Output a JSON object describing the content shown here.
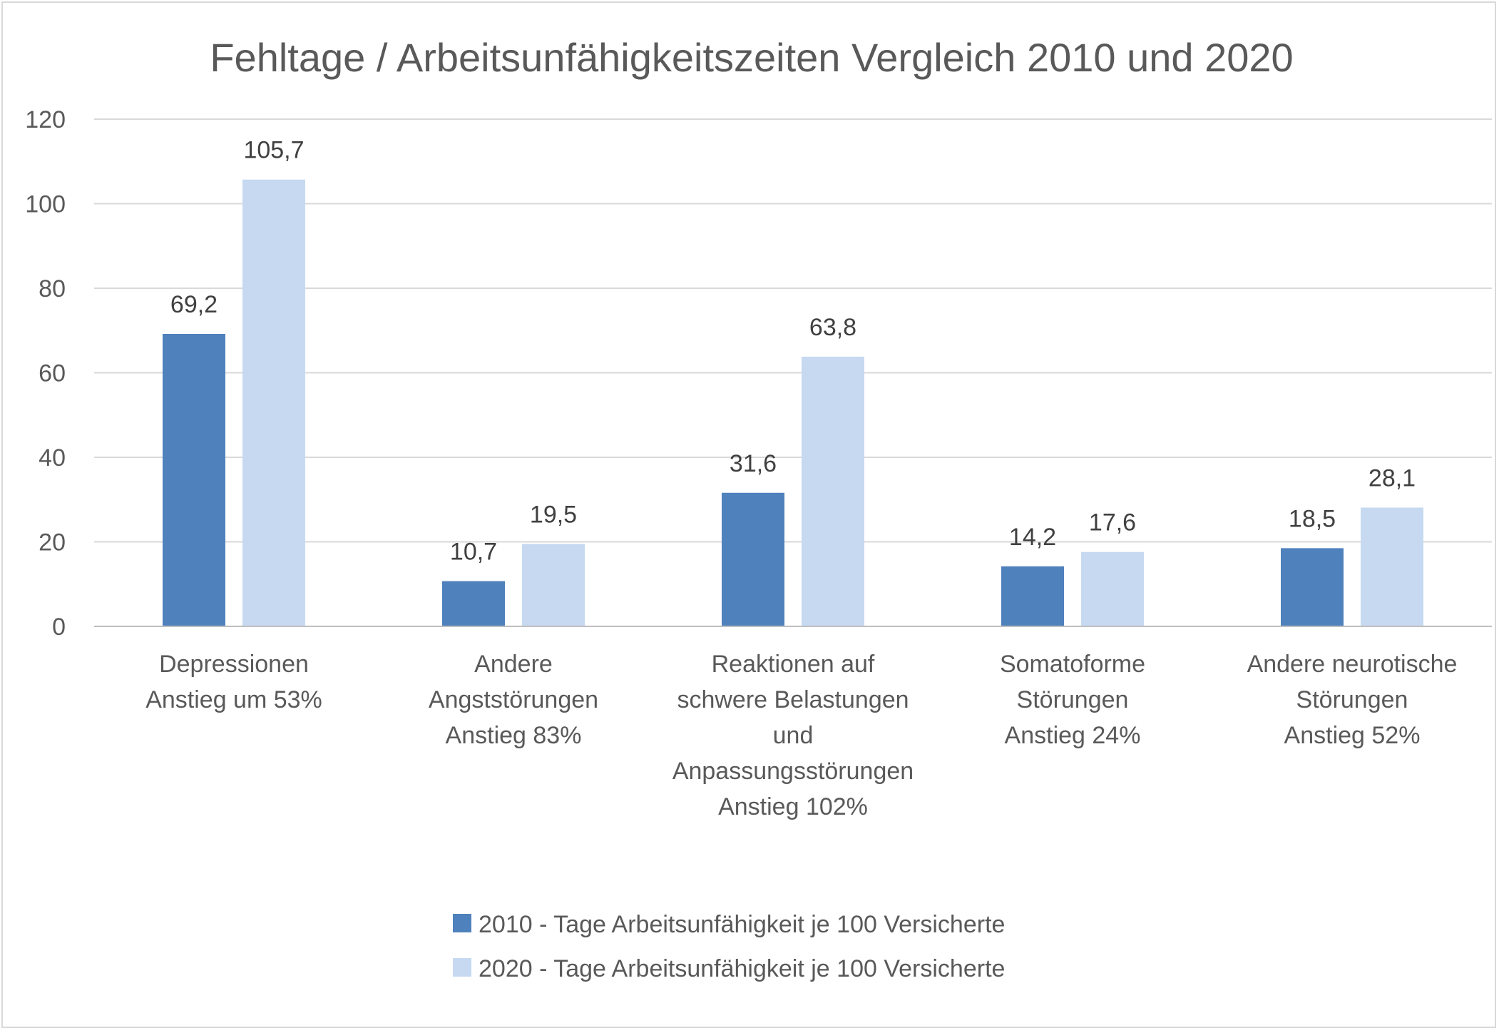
{
  "chart_data": {
    "type": "bar",
    "title": "Fehltage / Arbeitsunfähigkeitszeiten Vergleich 2010 und 2020",
    "xlabel": "",
    "ylabel": "",
    "ylim": [
      0,
      120
    ],
    "yticks": [
      0,
      20,
      40,
      60,
      80,
      100,
      120
    ],
    "grid": true,
    "legend_position": "bottom",
    "categories": [
      [
        "Depressionen",
        "Anstieg um 53%"
      ],
      [
        "Andere",
        "Angststörungen",
        "Anstieg 83%"
      ],
      [
        "Reaktionen auf",
        "schwere Belastungen",
        "und",
        "Anpassungsstörungen",
        "Anstieg 102%"
      ],
      [
        "Somatoforme",
        "Störungen",
        "Anstieg 24%"
      ],
      [
        "Andere neurotische",
        "Störungen",
        "Anstieg 52%"
      ]
    ],
    "series": [
      {
        "name": "2010 - Tage Arbeitsunfähigkeit je 100 Versicherte",
        "color": "#4f81bd",
        "values": [
          69.2,
          10.7,
          31.6,
          14.2,
          18.5
        ],
        "labels": [
          "69,2",
          "10,7",
          "31,6",
          "14,2",
          "18,5"
        ]
      },
      {
        "name": "2020 - Tage Arbeitsunfähigkeit je 100 Versicherte",
        "color": "#c6d9f1",
        "values": [
          105.7,
          19.5,
          63.8,
          17.6,
          28.1
        ],
        "labels": [
          "105,7",
          "19,5",
          "63,8",
          "17,6",
          "28,1"
        ]
      }
    ]
  }
}
